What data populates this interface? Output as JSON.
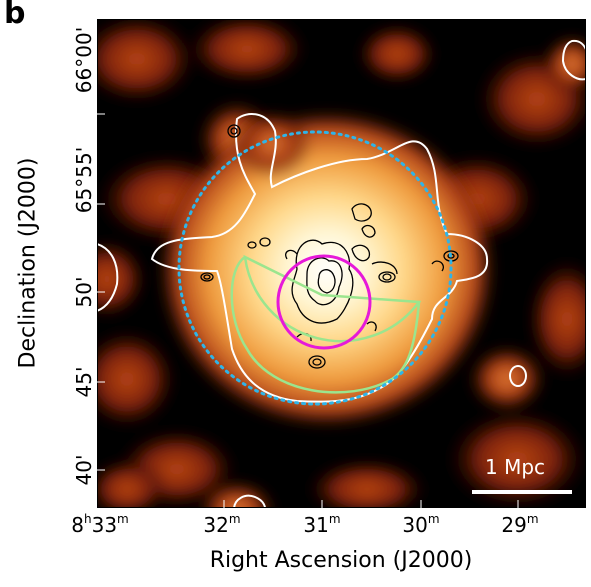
{
  "panel_label": "b",
  "axes": {
    "xlabel": "Right Ascension (J2000)",
    "ylabel": "Declination (J2000)",
    "x_ticks": [
      {
        "h": "8",
        "m": "33",
        "label_type": "full"
      },
      {
        "m": "32"
      },
      {
        "m": "31"
      },
      {
        "m": "30"
      },
      {
        "m": "29"
      }
    ],
    "y_ticks": [
      "40'",
      "45'",
      "50'",
      "55'",
      "66°00'"
    ],
    "y_ticks_prefix": [
      "",
      "",
      "",
      "65°",
      ""
    ]
  },
  "scale_bar": {
    "label": "1 Mpc"
  },
  "colors": {
    "background": "#000000",
    "dotted_circle": "#2fb4e8",
    "magenta_circle": "#e619d9",
    "green_sector": "#9be58e",
    "white_contour": "#ffffff"
  }
}
